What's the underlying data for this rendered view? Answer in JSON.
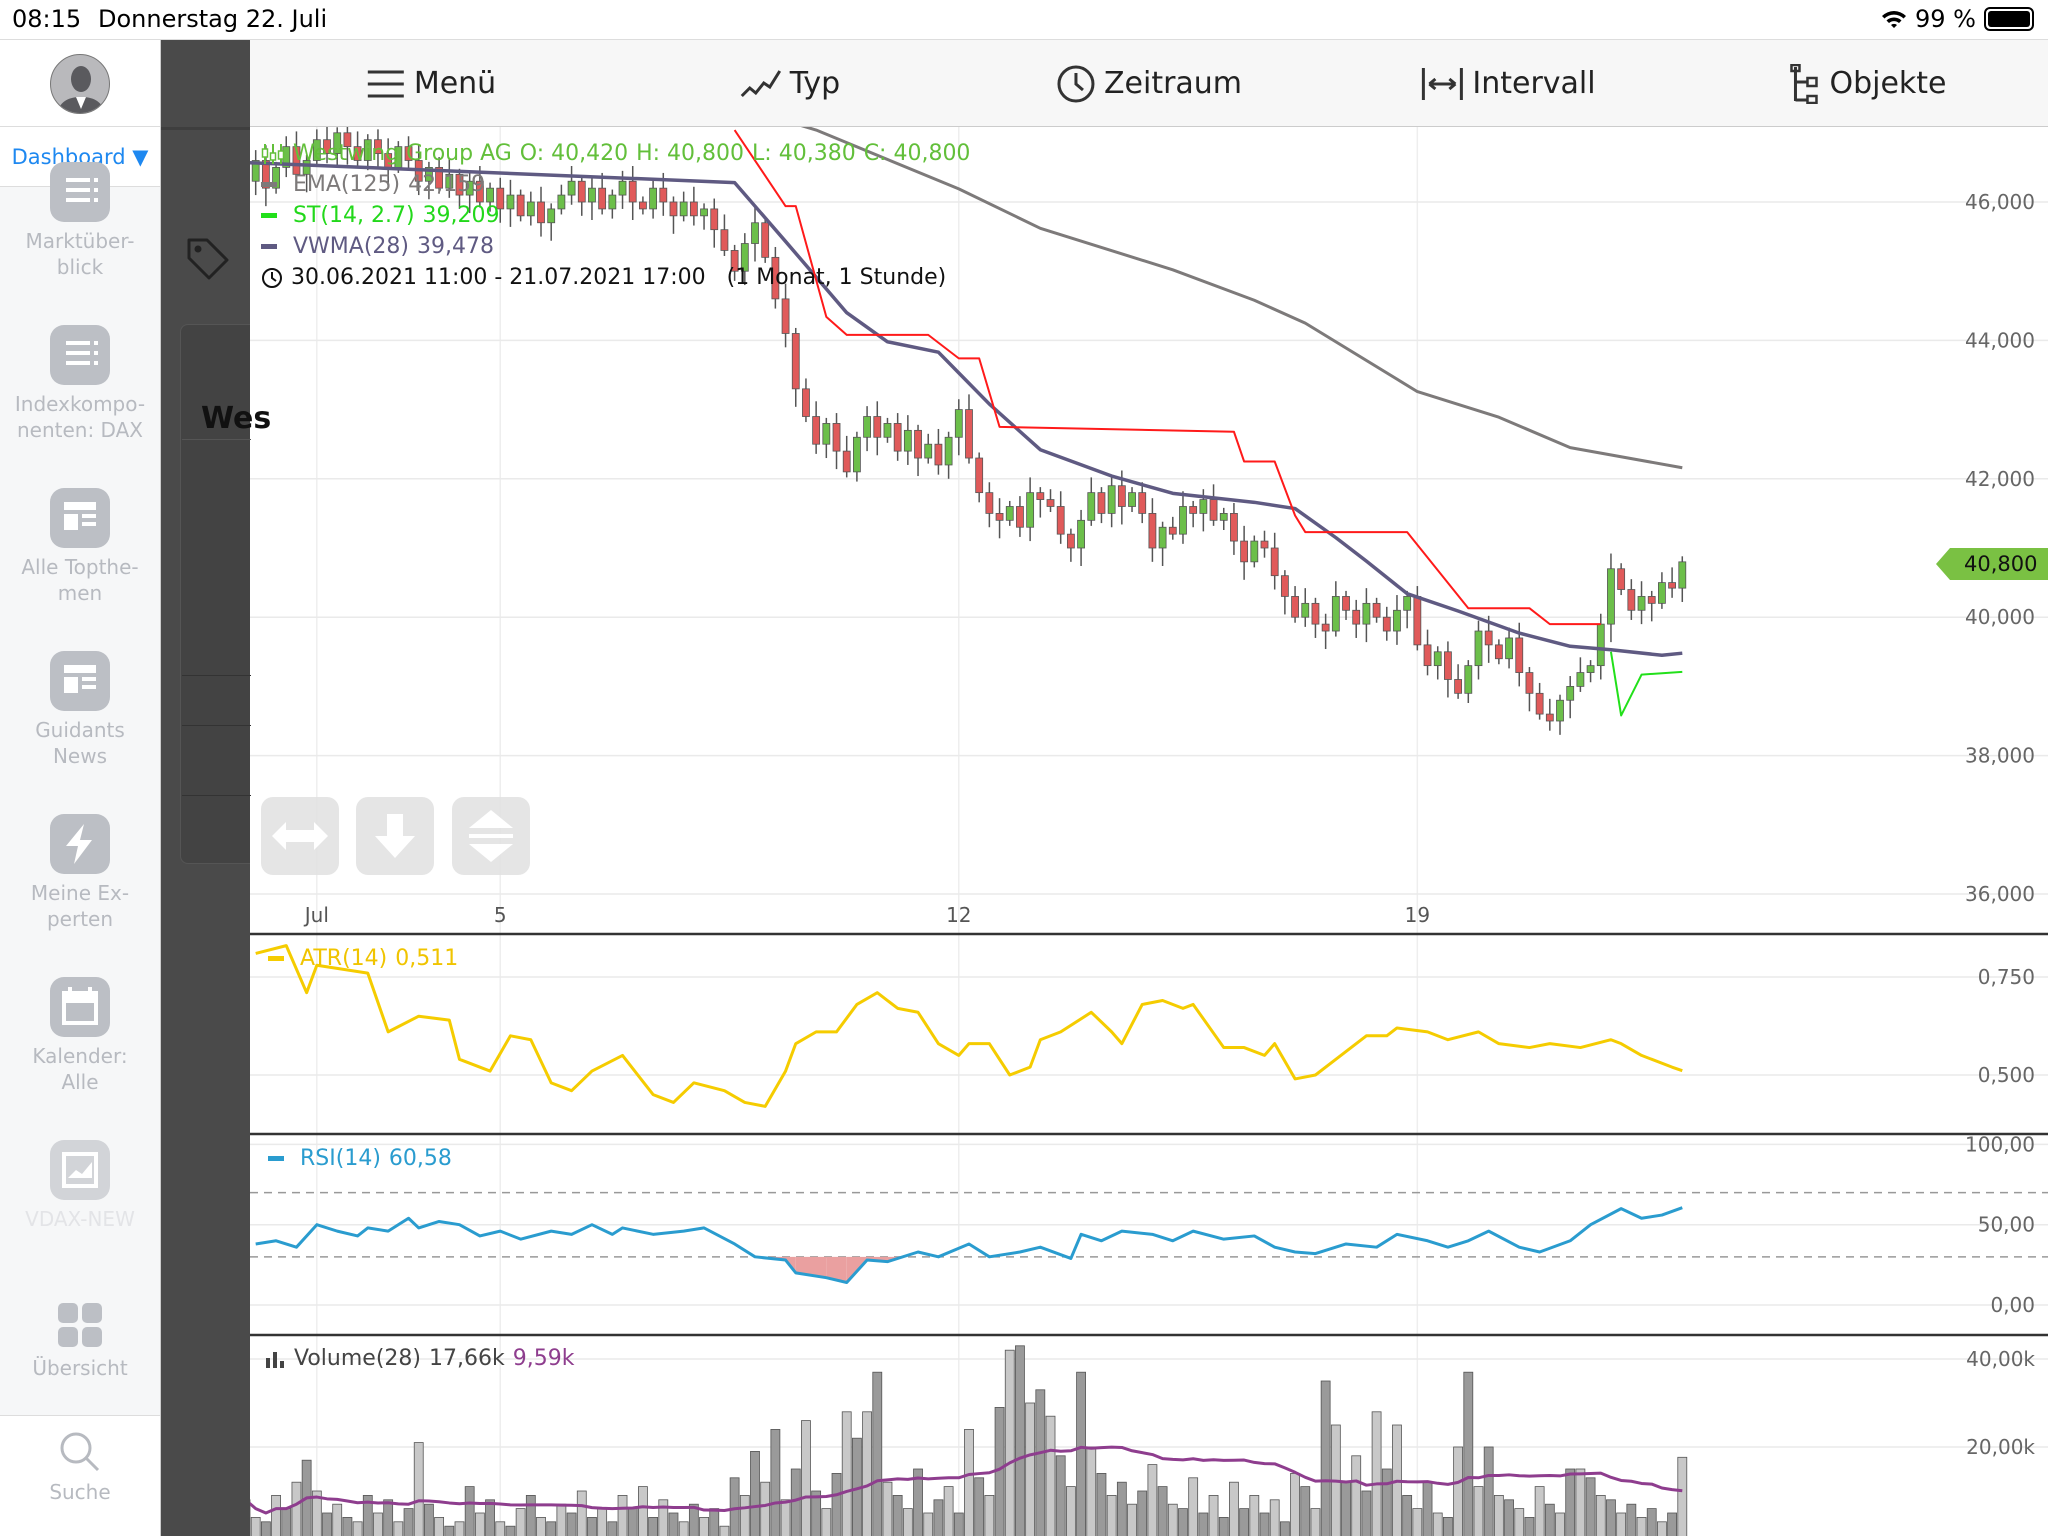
{
  "status": {
    "time": "08:15",
    "date": "Donnerstag 22. Juli",
    "battery": "99 %",
    "battery_level": 0.99
  },
  "sidebar": {
    "dashboard": "Dashboard ▼",
    "items": [
      {
        "label": "Marktüber-\nblick",
        "icon": "list-icon"
      },
      {
        "label": "Indexkompo-\nnenten: DAX",
        "icon": "list-icon"
      },
      {
        "label": "Alle Topthe-\nmen",
        "icon": "news-icon"
      },
      {
        "label": "Guidants\nNews",
        "icon": "news-icon"
      },
      {
        "label": "Meine Ex-\nperten",
        "icon": "lightning-icon"
      },
      {
        "label": "Kalender:\nAlle",
        "icon": "calendar-icon"
      },
      {
        "label": "VDAX-NEW",
        "icon": "chart-icon"
      },
      {
        "label": "Übersicht",
        "icon": "grid-icon"
      }
    ],
    "search": "Suche"
  },
  "background_panel": {
    "title": "Wes"
  },
  "toolbar": {
    "items": [
      {
        "label": "Menü",
        "icon": "hamburger-icon"
      },
      {
        "label": "Typ",
        "icon": "line-chart-icon"
      },
      {
        "label": "Zeitraum",
        "icon": "clock-icon"
      },
      {
        "label": "Intervall",
        "icon": "interval-icon"
      },
      {
        "label": "Objekte",
        "icon": "tree-icon"
      }
    ]
  },
  "colors": {
    "up": "#6cbf4a",
    "down": "#e05a5a",
    "ema": "#7d7a7a",
    "supertrend_down": "#ff1a1a",
    "supertrend_up": "#22e01a",
    "vwma": "#5f5a82",
    "atr": "#f5cc00",
    "rsi": "#2a9ccf",
    "volume_ma": "#8e3d8e",
    "accent": "#1e88f0"
  },
  "chart_data": [
    {
      "type": "candlestick",
      "legend": {
        "instrument": "Westwing Group AG",
        "open": "O: 40,420",
        "high": "H: 40,800",
        "low": "L: 40,380",
        "close": "C: 40,800",
        "ema_label": "EMA(125)",
        "ema_value": "42,159",
        "st_label": "ST(14, 2.7)",
        "st_value": "39,209",
        "vwma_label": "VWMA(28)",
        "vwma_value": "39,478",
        "range": "30.06.2021 11:00 - 21.07.2021 17:00   (1 Monat, 1 Stunde)"
      },
      "last_price_tag": "40,800",
      "ylim": [
        35.5,
        47.5
      ],
      "y_ticks": [
        {
          "v": 46,
          "label": "46,000"
        },
        {
          "v": 44,
          "label": "44,000"
        },
        {
          "v": 42,
          "label": "42,000"
        },
        {
          "v": 40,
          "label": "40,000"
        },
        {
          "v": 38,
          "label": "38,000"
        },
        {
          "v": 36,
          "label": "36,000"
        }
      ],
      "x_ticks": [
        {
          "label": "Jul",
          "bar": 7
        },
        {
          "label": "5",
          "bar": 25
        },
        {
          "label": "12",
          "bar": 70
        },
        {
          "label": "19",
          "bar": 115
        }
      ],
      "closes_by_day": [
        [
          46.3,
          46.6,
          46.2,
          46.5,
          46.8,
          46.4,
          46.6
        ],
        [
          46.9,
          46.7,
          47.0,
          46.8,
          46.6,
          46.9,
          46.7,
          46.5,
          46.8
        ],
        [
          46.6,
          46.3,
          46.5,
          46.2,
          46.4,
          46.1,
          46.3,
          46.0,
          46.2
        ],
        [
          45.9,
          46.1,
          45.8,
          46.0,
          45.7,
          45.9,
          46.1,
          46.3,
          46.0
        ],
        [
          46.2,
          45.9,
          46.1,
          46.3,
          46.0,
          45.9,
          46.2,
          46.0,
          45.8
        ],
        [
          46.0,
          45.8,
          45.9,
          45.6,
          45.3,
          45.0,
          45.4,
          45.7,
          45.2
        ],
        [
          44.6,
          44.1,
          43.3,
          42.9,
          42.5,
          42.8,
          42.4,
          42.1,
          42.6
        ],
        [
          42.9,
          42.6,
          42.8,
          42.4,
          42.7,
          42.3,
          42.5,
          42.2,
          42.6
        ],
        [
          43.0,
          42.3,
          41.8,
          41.5,
          41.4,
          41.6,
          41.3,
          41.8,
          41.7
        ],
        [
          41.6,
          41.2,
          41.0,
          41.4,
          41.8,
          41.5,
          41.9,
          41.6,
          41.8
        ],
        [
          41.5,
          41.0,
          41.3,
          41.2,
          41.6,
          41.5,
          41.7,
          41.4,
          41.5
        ],
        [
          41.1,
          40.8,
          41.1,
          41.0,
          40.6,
          40.3,
          40.0,
          40.2,
          39.9
        ],
        [
          39.8,
          40.3,
          40.1,
          39.9,
          40.2,
          40.0,
          39.8,
          40.1,
          40.3
        ],
        [
          39.6,
          39.3,
          39.5,
          39.1,
          38.9,
          39.3,
          39.8,
          39.6,
          39.4
        ],
        [
          39.7,
          39.2,
          38.9,
          38.6,
          38.5,
          38.8,
          39.0,
          39.2,
          39.3
        ],
        [
          39.9,
          40.7,
          40.4,
          40.1,
          40.3,
          40.2,
          40.5,
          40.42,
          40.8
        ]
      ],
      "ema_125": [
        [
          0,
          49.5
        ],
        [
          56,
          47.04
        ],
        [
          70,
          46.19
        ],
        [
          78,
          45.62
        ],
        [
          91,
          45.02
        ],
        [
          99,
          44.58
        ],
        [
          104,
          44.25
        ],
        [
          115,
          43.26
        ],
        [
          123,
          42.89
        ],
        [
          130,
          42.45
        ],
        [
          141,
          42.16
        ]
      ],
      "supertrend_down": [
        [
          48,
          47.04
        ],
        [
          53,
          45.94
        ],
        [
          54,
          45.94
        ],
        [
          57,
          44.34
        ],
        [
          59,
          44.08
        ],
        [
          67,
          44.08
        ],
        [
          70,
          43.74
        ],
        [
          72,
          43.74
        ],
        [
          74,
          42.75
        ],
        [
          97,
          42.68
        ],
        [
          98,
          42.25
        ],
        [
          101,
          42.25
        ],
        [
          103,
          41.47
        ],
        [
          104,
          41.23
        ],
        [
          114,
          41.23
        ],
        [
          120,
          40.13
        ],
        [
          126,
          40.13
        ],
        [
          128,
          39.9
        ],
        [
          133,
          39.9
        ]
      ],
      "supertrend_up": [
        [
          134,
          39.5
        ],
        [
          135,
          38.58
        ],
        [
          137,
          39.17
        ],
        [
          141,
          39.21
        ]
      ],
      "vwma_28": [
        [
          0,
          46.57
        ],
        [
          48,
          46.28
        ],
        [
          53,
          45.43
        ],
        [
          59,
          44.4
        ],
        [
          63,
          43.98
        ],
        [
          68,
          43.83
        ],
        [
          73,
          43.08
        ],
        [
          78,
          42.42
        ],
        [
          85,
          42.04
        ],
        [
          91,
          41.79
        ],
        [
          99,
          41.66
        ],
        [
          103,
          41.57
        ],
        [
          107,
          41.15
        ],
        [
          110,
          40.81
        ],
        [
          114,
          40.34
        ],
        [
          119,
          40.09
        ],
        [
          125,
          39.77
        ],
        [
          130,
          39.58
        ],
        [
          134,
          39.53
        ],
        [
          139,
          39.45
        ],
        [
          141,
          39.48
        ]
      ]
    },
    {
      "type": "line",
      "label": "ATR(14)",
      "value": "0,511",
      "ylim": [
        0.38,
        0.84
      ],
      "y_ticks": [
        {
          "v": 0.75,
          "label": "0,750"
        },
        {
          "v": 0.5,
          "label": "0,500"
        }
      ],
      "points": [
        [
          1,
          0.81
        ],
        [
          4,
          0.83
        ],
        [
          6,
          0.71
        ],
        [
          7,
          0.78
        ],
        [
          12,
          0.76
        ],
        [
          14,
          0.61
        ],
        [
          17,
          0.65
        ],
        [
          20,
          0.64
        ],
        [
          21,
          0.54
        ],
        [
          24,
          0.51
        ],
        [
          26,
          0.6
        ],
        [
          28,
          0.59
        ],
        [
          30,
          0.48
        ],
        [
          32,
          0.46
        ],
        [
          34,
          0.51
        ],
        [
          37,
          0.55
        ],
        [
          40,
          0.45
        ],
        [
          42,
          0.43
        ],
        [
          44,
          0.48
        ],
        [
          47,
          0.46
        ],
        [
          49,
          0.43
        ],
        [
          51,
          0.42
        ],
        [
          53,
          0.51
        ],
        [
          54,
          0.58
        ],
        [
          56,
          0.61
        ],
        [
          58,
          0.61
        ],
        [
          60,
          0.68
        ],
        [
          62,
          0.71
        ],
        [
          64,
          0.67
        ],
        [
          66,
          0.66
        ],
        [
          68,
          0.58
        ],
        [
          70,
          0.55
        ],
        [
          71,
          0.58
        ],
        [
          73,
          0.58
        ],
        [
          75,
          0.5
        ],
        [
          77,
          0.52
        ],
        [
          78,
          0.59
        ],
        [
          80,
          0.61
        ],
        [
          83,
          0.66
        ],
        [
          85,
          0.61
        ],
        [
          86,
          0.58
        ],
        [
          88,
          0.68
        ],
        [
          90,
          0.69
        ],
        [
          92,
          0.67
        ],
        [
          93,
          0.68
        ],
        [
          96,
          0.57
        ],
        [
          98,
          0.57
        ],
        [
          100,
          0.55
        ],
        [
          101,
          0.58
        ],
        [
          103,
          0.49
        ],
        [
          105,
          0.5
        ],
        [
          107,
          0.54
        ],
        [
          110,
          0.6
        ],
        [
          112,
          0.6
        ],
        [
          113,
          0.62
        ],
        [
          116,
          0.61
        ],
        [
          118,
          0.59
        ],
        [
          121,
          0.61
        ],
        [
          123,
          0.58
        ],
        [
          126,
          0.57
        ],
        [
          128,
          0.58
        ],
        [
          131,
          0.57
        ],
        [
          134,
          0.59
        ],
        [
          135,
          0.58
        ],
        [
          137,
          0.55
        ],
        [
          140,
          0.52
        ],
        [
          141,
          0.511
        ]
      ]
    },
    {
      "type": "line",
      "label": "RSI(14)",
      "value": "60,58",
      "ylim": [
        0,
        100
      ],
      "bands": [
        30,
        70
      ],
      "y_ticks": [
        {
          "v": 100,
          "label": "100,00"
        },
        {
          "v": 50,
          "label": "50,00"
        },
        {
          "v": 0,
          "label": "0,00"
        }
      ],
      "points": [
        [
          1,
          38
        ],
        [
          3,
          40
        ],
        [
          5,
          36
        ],
        [
          7,
          50
        ],
        [
          9,
          46
        ],
        [
          11,
          43
        ],
        [
          12,
          48
        ],
        [
          14,
          46
        ],
        [
          16,
          54
        ],
        [
          17,
          48
        ],
        [
          19,
          52
        ],
        [
          21,
          50
        ],
        [
          23,
          43
        ],
        [
          25,
          46
        ],
        [
          27,
          41
        ],
        [
          30,
          46
        ],
        [
          32,
          44
        ],
        [
          34,
          50
        ],
        [
          36,
          44
        ],
        [
          37,
          48
        ],
        [
          40,
          44
        ],
        [
          43,
          46
        ],
        [
          45,
          48
        ],
        [
          48,
          38
        ],
        [
          50,
          30
        ],
        [
          53,
          28
        ],
        [
          54,
          20
        ],
        [
          57,
          17
        ],
        [
          59,
          14
        ],
        [
          61,
          28
        ],
        [
          63,
          27
        ],
        [
          66,
          33
        ],
        [
          68,
          30
        ],
        [
          71,
          38
        ],
        [
          73,
          30
        ],
        [
          76,
          33
        ],
        [
          78,
          36
        ],
        [
          81,
          29
        ],
        [
          82,
          44
        ],
        [
          84,
          40
        ],
        [
          86,
          46
        ],
        [
          89,
          44
        ],
        [
          91,
          40
        ],
        [
          93,
          46
        ],
        [
          96,
          41
        ],
        [
          99,
          43
        ],
        [
          101,
          36
        ],
        [
          103,
          33
        ],
        [
          105,
          32
        ],
        [
          108,
          38
        ],
        [
          111,
          36
        ],
        [
          113,
          44
        ],
        [
          116,
          40
        ],
        [
          118,
          36
        ],
        [
          120,
          40
        ],
        [
          122,
          46
        ],
        [
          125,
          36
        ],
        [
          127,
          33
        ],
        [
          130,
          40
        ],
        [
          132,
          50
        ],
        [
          135,
          60
        ],
        [
          137,
          54
        ],
        [
          139,
          56
        ],
        [
          141,
          60.58
        ]
      ]
    },
    {
      "type": "bar",
      "label": "Volume(28)",
      "value": "17,66k",
      "ma_value": "9,59k",
      "ylim": [
        0,
        45
      ],
      "y_ticks": [
        {
          "v": 40,
          "label": "40,00k"
        },
        {
          "v": 20,
          "label": "20,00k"
        }
      ],
      "values_k": [
        8,
        4,
        3,
        9,
        6,
        12,
        17,
        10,
        5,
        7,
        4,
        3,
        9,
        5,
        8,
        3,
        6,
        21,
        7,
        4,
        2,
        3,
        11,
        5,
        8,
        3,
        2,
        6,
        9,
        4,
        3,
        7,
        5,
        10,
        4,
        6,
        3,
        9,
        6,
        11,
        4,
        8,
        5,
        3,
        7,
        4,
        6,
        2,
        13,
        9,
        19,
        12,
        24,
        8,
        15,
        26,
        10,
        6,
        14,
        28,
        22,
        28,
        37,
        12,
        9,
        6,
        15,
        5,
        8,
        11,
        5,
        24,
        13,
        9,
        29,
        42,
        43,
        30,
        33,
        27,
        18,
        11,
        37,
        20,
        14,
        9,
        12,
        7,
        10,
        16,
        11,
        7,
        6,
        13,
        5,
        9,
        4,
        12,
        6,
        9,
        5,
        8,
        3,
        14,
        11,
        6,
        35,
        25,
        12,
        18,
        10,
        28,
        15,
        25,
        9,
        6,
        12,
        5,
        4,
        20,
        37,
        11,
        20,
        9,
        8,
        6,
        4,
        11,
        7,
        5,
        15,
        15,
        13,
        9,
        8,
        5,
        7,
        4,
        6,
        3,
        5,
        17.66
      ]
    }
  ]
}
